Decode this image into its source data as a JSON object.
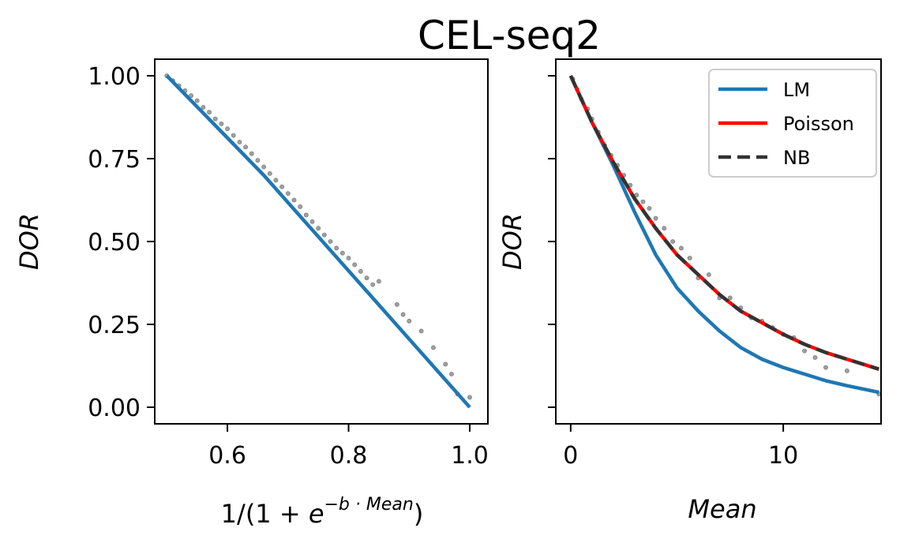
{
  "figure": {
    "title": "CEL-seq2"
  },
  "chart_data": [
    {
      "type": "scatter",
      "xlabel": "1/(1 + e^(−b · Mean))",
      "xlabel_parts": {
        "prefix": "1/(1 + ",
        "base": "e",
        "exponent": "−b · Mean",
        "suffix": ")"
      },
      "ylabel": "DOR",
      "xlim": [
        0.48,
        1.03
      ],
      "ylim": [
        -0.05,
        1.05
      ],
      "xticks": [
        0.6,
        0.8,
        1.0
      ],
      "xtick_labels": [
        "0.6",
        "0.8",
        "1.0"
      ],
      "yticks": [
        0.0,
        0.25,
        0.5,
        0.75,
        1.0
      ],
      "ytick_labels": [
        "0.00",
        "0.25",
        "0.50",
        "0.75",
        "1.00"
      ],
      "grid": false,
      "series": [
        {
          "kind": "scatter",
          "color": "#a0a0a0",
          "x": [
            0.5,
            0.51,
            0.52,
            0.53,
            0.54,
            0.55,
            0.56,
            0.57,
            0.58,
            0.59,
            0.6,
            0.61,
            0.62,
            0.63,
            0.64,
            0.65,
            0.66,
            0.67,
            0.68,
            0.69,
            0.7,
            0.71,
            0.72,
            0.73,
            0.74,
            0.75,
            0.76,
            0.77,
            0.78,
            0.79,
            0.8,
            0.81,
            0.82,
            0.83,
            0.84,
            0.85,
            0.88,
            0.89,
            0.9,
            0.92,
            0.94,
            0.96,
            0.97,
            0.98,
            1.0
          ],
          "y": [
            1.0,
            0.985,
            0.97,
            0.955,
            0.94,
            0.925,
            0.905,
            0.89,
            0.87,
            0.855,
            0.84,
            0.82,
            0.8,
            0.785,
            0.765,
            0.745,
            0.725,
            0.705,
            0.685,
            0.665,
            0.645,
            0.625,
            0.605,
            0.58,
            0.56,
            0.54,
            0.52,
            0.5,
            0.48,
            0.465,
            0.45,
            0.43,
            0.41,
            0.39,
            0.37,
            0.38,
            0.31,
            0.28,
            0.26,
            0.23,
            0.18,
            0.13,
            0.1,
            0.04,
            0.03
          ]
        },
        {
          "kind": "line",
          "color": "#1f77b4",
          "x": [
            0.5,
            0.66,
            1.0
          ],
          "y": [
            1.0,
            0.7,
            0.0
          ]
        }
      ]
    },
    {
      "type": "line",
      "xlabel": "Mean",
      "ylabel": "DOR",
      "xlim": [
        -0.7,
        14.6
      ],
      "ylim": [
        -0.05,
        1.05
      ],
      "xticks": [
        0,
        10
      ],
      "xtick_labels": [
        "0",
        "10"
      ],
      "yticks": [
        0.0,
        0.25,
        0.5,
        0.75,
        1.0
      ],
      "grid": false,
      "legend": "top-right",
      "series": [
        {
          "name": "LM",
          "kind": "line",
          "color": "#1f77b4",
          "x": [
            0,
            1,
            2,
            3,
            4,
            5,
            6,
            7,
            8,
            9,
            10,
            11,
            12,
            13,
            14.5
          ],
          "y": [
            1.0,
            0.86,
            0.73,
            0.59,
            0.46,
            0.36,
            0.29,
            0.23,
            0.18,
            0.145,
            0.12,
            0.1,
            0.08,
            0.065,
            0.045
          ]
        },
        {
          "name": "Poisson",
          "kind": "line",
          "color": "#ff0000",
          "x": [
            0,
            1,
            2,
            3,
            4,
            5,
            6,
            7,
            8,
            9,
            10,
            11,
            12,
            13,
            14.5
          ],
          "y": [
            1.0,
            0.86,
            0.74,
            0.63,
            0.54,
            0.46,
            0.4,
            0.34,
            0.29,
            0.255,
            0.22,
            0.19,
            0.165,
            0.145,
            0.115
          ]
        },
        {
          "name": "NB",
          "kind": "dashed-line",
          "color": "#333333",
          "x": [
            0,
            1,
            2,
            3,
            4,
            5,
            6,
            7,
            8,
            9,
            10,
            11,
            12,
            13,
            14.5
          ],
          "y": [
            1.0,
            0.86,
            0.74,
            0.63,
            0.54,
            0.46,
            0.4,
            0.34,
            0.29,
            0.255,
            0.22,
            0.19,
            0.165,
            0.145,
            0.115
          ]
        },
        {
          "kind": "scatter",
          "color": "#a0a0a0",
          "x": [
            0.1,
            0.3,
            0.5,
            0.8,
            1.0,
            1.3,
            1.6,
            1.9,
            2.2,
            2.5,
            2.8,
            3.1,
            3.4,
            3.7,
            4.0,
            4.4,
            4.8,
            5.2,
            5.6,
            6.0,
            6.5,
            7.0,
            7.5,
            8.0,
            8.5,
            9.0,
            9.5,
            10.0,
            10.5,
            11.0,
            11.5,
            12.0,
            13.0,
            14.5
          ],
          "y": [
            0.99,
            0.96,
            0.93,
            0.9,
            0.87,
            0.83,
            0.79,
            0.76,
            0.73,
            0.7,
            0.67,
            0.64,
            0.62,
            0.6,
            0.57,
            0.54,
            0.5,
            0.48,
            0.45,
            0.39,
            0.4,
            0.33,
            0.33,
            0.3,
            0.27,
            0.26,
            0.24,
            0.22,
            0.21,
            0.17,
            0.15,
            0.12,
            0.11,
            0.04
          ]
        }
      ]
    }
  ]
}
